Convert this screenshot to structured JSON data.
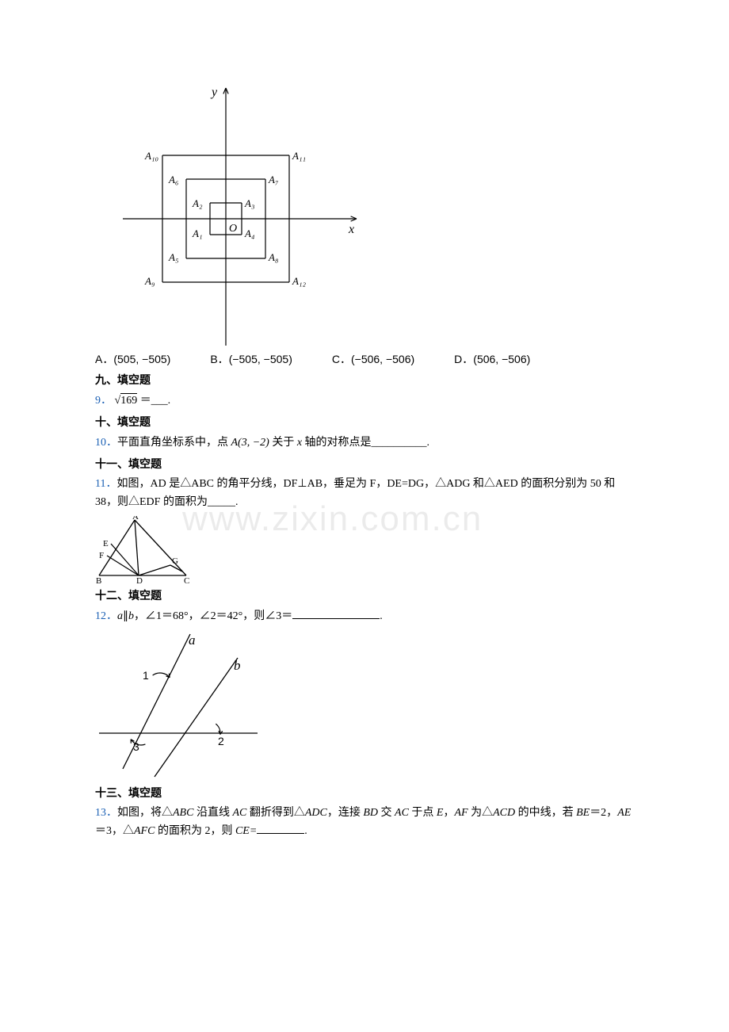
{
  "watermark": "www.zixin.com.cn",
  "coord_diagram": {
    "axis_labels": {
      "x": "x",
      "y": "y",
      "origin": "O"
    },
    "squares": [
      {
        "half": 20,
        "pts": [
          "A₁",
          "A₂",
          "A₃",
          "A₄"
        ]
      },
      {
        "half": 50,
        "pts": [
          "A₅",
          "A₆",
          "A₇",
          "A₈"
        ]
      },
      {
        "half": 80,
        "pts": [
          "A₉",
          "A₁₀",
          "A₁₁",
          "A₁₂"
        ]
      }
    ],
    "stroke": "#000",
    "stroke_width": 1.2
  },
  "choices": {
    "A": "(505, −505)",
    "B": "(−505, −505)",
    "C": "(−506, −506)",
    "D": "(506, −506)"
  },
  "sec9_title": "九、填空题",
  "q9": {
    "num": "9．",
    "expr_pre": "√",
    "expr_radicand": "169",
    "expr_eq": " ＝___."
  },
  "sec10_title": "十、填空题",
  "q10": {
    "num": "10．",
    "text_pre": "平面直角坐标系中，点 ",
    "pt": "A(3, −2)",
    "text_mid": " 关于 ",
    "axis": "x",
    "text_post": " 轴的对称点是__________."
  },
  "sec11_title": "十一、填空题",
  "q11": {
    "num": "11．",
    "text": "如图，AD 是△ABC 的角平分线，DF⊥AB，垂足为 F，DE=DG，△ADG 和△AED 的面积分别为 50 和 38，则△EDF 的面积为_____."
  },
  "triangle_fig": {
    "A": [
      50,
      5
    ],
    "B": [
      5,
      75
    ],
    "D": [
      55,
      75
    ],
    "C": [
      115,
      75
    ],
    "E": [
      20,
      35
    ],
    "F": [
      15,
      50
    ],
    "G": [
      95,
      62
    ],
    "stroke": "#000",
    "stroke_width": 1.3
  },
  "sec12_title": "十二、填空题",
  "q12": {
    "num": "12．",
    "text": "如图，a∥b，∠1＝68°，∠2＝42°，则∠3＝_____________."
  },
  "lines_fig": {
    "a_label": "a",
    "b_label": "b",
    "labels": {
      "one": "1",
      "two": "2",
      "three": "3"
    },
    "stroke": "#000",
    "stroke_width": 1.3
  },
  "sec13_title": "十三、填空题",
  "q13": {
    "num": "13．",
    "text": "如图，将△ABC 沿直线 AC 翻折得到△ADC，连接 BD 交 AC 于点 E，AF 为△ACD 的中线，若 BE＝2，AE＝3，△AFC 的面积为 2，则 CE=_____."
  }
}
